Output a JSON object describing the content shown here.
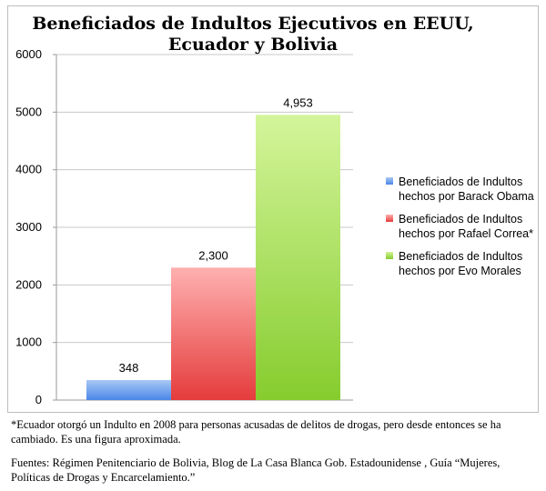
{
  "chart_data": {
    "type": "bar",
    "title": [
      "Beneficiados de Indultos Ejecutivos en EEUU,",
      "Ecuador y Bolivia"
    ],
    "categories": [
      "",
      "",
      ""
    ],
    "series": [
      {
        "name": "Beneficiados de Indultos hechos por Barack Obama",
        "legend_lines": [
          "Beneficiados de Indultos",
          "hechos por Barack Obama"
        ],
        "value": 348,
        "label": "348",
        "color": "#4a86e8",
        "color_light": "#a9c8f5"
      },
      {
        "name": "Beneficiados de Indultos hechos por Rafael Correa*",
        "legend_lines": [
          "Beneficiados de Indultos",
          "hechos por Rafael Correa*"
        ],
        "value": 2300,
        "label": "2,300",
        "color": "#e53c3c",
        "color_light": "#ffb0b0"
      },
      {
        "name": "Beneficiados de Indultos hechos por Evo Morales",
        "legend_lines": [
          "Beneficiados de Indultos",
          "hechos por Evo Morales"
        ],
        "value": 4953,
        "label": "4,953",
        "color": "#86cc2e",
        "color_light": "#d4f59b"
      }
    ],
    "yticks": [
      "0",
      "1000",
      "2000",
      "3000",
      "4000",
      "5000",
      "6000"
    ],
    "ylim": [
      0,
      6000
    ],
    "grid": true,
    "legend_position": "right"
  },
  "footnotes": {
    "note": "*Ecuador otorgó un Indulto en 2008 para personas acusadas de delitos de drogas, pero desde entonces se ha cambiado. Es una figura aproximada.",
    "sources": "Fuentes: Régimen Penitenciario de Bolivia, Blog de La Casa Blanca Gob. Estadounidense , Guía “Mujeres, Políticas de Drogas y Encarcelamiento.”"
  }
}
